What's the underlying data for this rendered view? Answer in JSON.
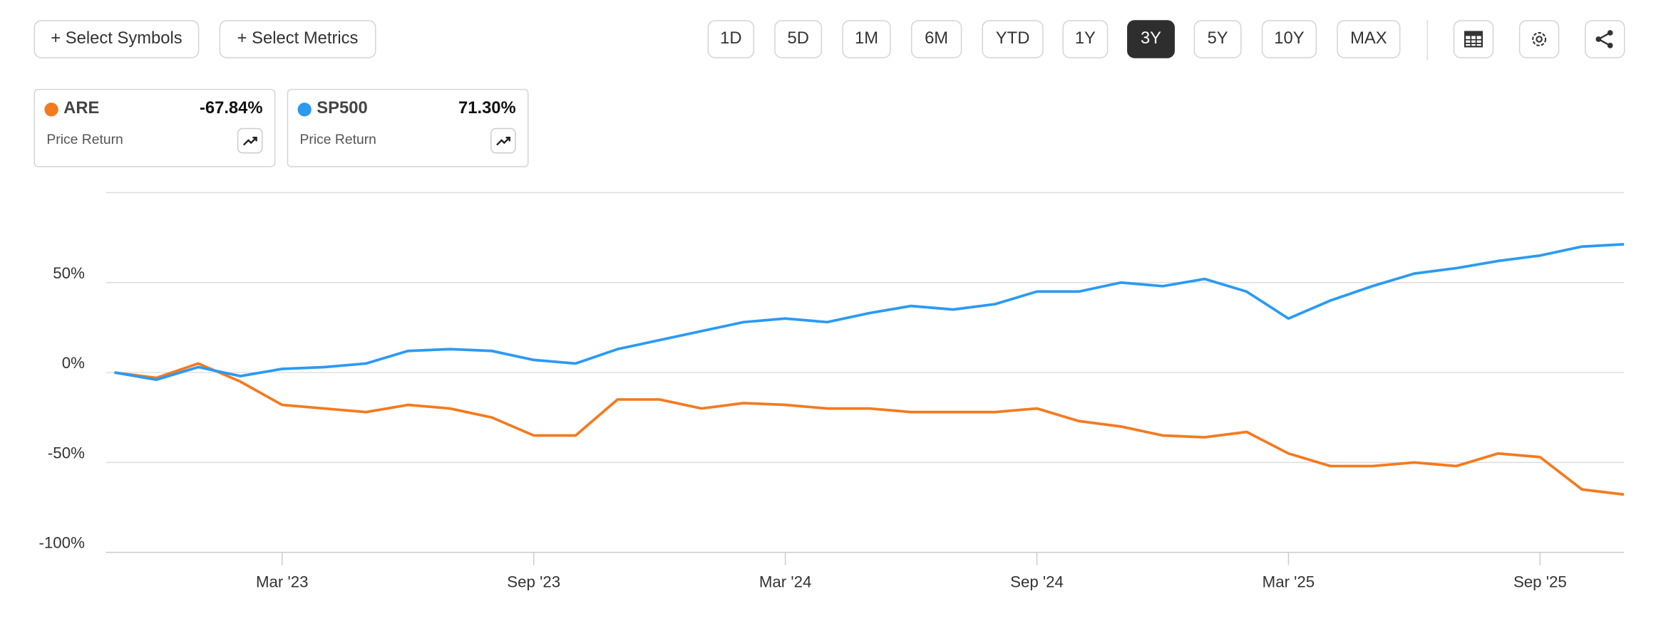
{
  "toolbar": {
    "buttons": [
      "+ Select Symbols",
      "+ Select Metrics"
    ],
    "ranges": [
      "1D",
      "5D",
      "1M",
      "6M",
      "YTD",
      "1Y",
      "3Y",
      "5Y",
      "10Y",
      "MAX"
    ],
    "active_range": "3Y"
  },
  "cards": [
    {
      "value": "-67.84%",
      "metric": "Price Return"
    },
    {
      "value": "71.30%",
      "metric": "Price Return"
    }
  ],
  "chart_data": {
    "type": "line",
    "x": [
      "2022-11",
      "2022-12",
      "2023-01",
      "2023-02",
      "2023-03",
      "2023-04",
      "2023-05",
      "2023-06",
      "2023-07",
      "2023-08",
      "2023-09",
      "2023-10",
      "2023-11",
      "2023-12",
      "2024-01",
      "2024-02",
      "2024-03",
      "2024-04",
      "2024-05",
      "2024-06",
      "2024-07",
      "2024-08",
      "2024-09",
      "2024-10",
      "2024-11",
      "2024-12",
      "2025-01",
      "2025-02",
      "2025-03",
      "2025-04",
      "2025-05",
      "2025-06",
      "2025-07",
      "2025-08",
      "2025-09",
      "2025-10",
      "2025-11"
    ],
    "xticks": [
      {
        "value": "2023-03",
        "label": "Mar '23"
      },
      {
        "value": "2023-09",
        "label": "Sep '23"
      },
      {
        "value": "2024-03",
        "label": "Mar '24"
      },
      {
        "value": "2024-09",
        "label": "Sep '24"
      },
      {
        "value": "2025-03",
        "label": "Mar '25"
      },
      {
        "value": "2025-09",
        "label": "Sep '25"
      }
    ],
    "series": [
      {
        "name": "ARE",
        "color": "#f47a1f",
        "values": [
          0,
          -3,
          5,
          -5,
          -18,
          -20,
          -22,
          -18,
          -20,
          -25,
          -35,
          -35,
          -15,
          -15,
          -20,
          -17,
          -18,
          -20,
          -20,
          -22,
          -22,
          -22,
          -20,
          -27,
          -30,
          -35,
          -36,
          -33,
          -45,
          -52,
          -52,
          -50,
          -52,
          -45,
          -47,
          -65,
          -67.84
        ]
      },
      {
        "name": "SP500",
        "color": "#2b9af3",
        "values": [
          0,
          -4,
          3,
          -2,
          2,
          3,
          5,
          12,
          13,
          12,
          7,
          5,
          13,
          18,
          23,
          28,
          30,
          28,
          33,
          37,
          35,
          38,
          45,
          45,
          50,
          48,
          52,
          45,
          30,
          40,
          48,
          55,
          58,
          62,
          65,
          70,
          71.3
        ]
      }
    ],
    "ylim": [
      -100,
      100
    ],
    "yticks": [
      {
        "value": -100,
        "label": "-100%"
      },
      {
        "value": -50,
        "label": "-50%"
      },
      {
        "value": 0,
        "label": "0%"
      },
      {
        "value": 50,
        "label": "50%"
      }
    ],
    "grid": true
  }
}
